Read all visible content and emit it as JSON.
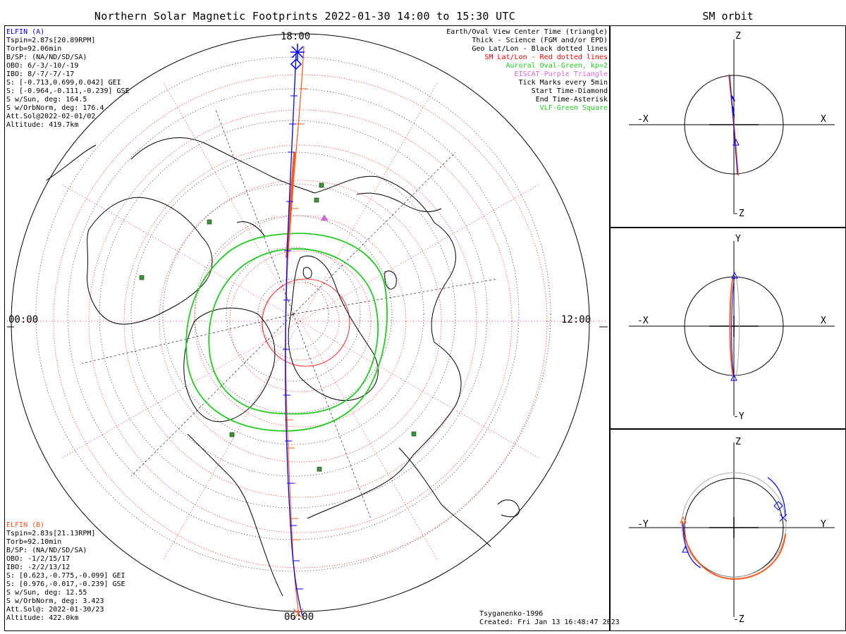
{
  "header": {
    "title": "Northern Solar Magnetic Footprints 2022-01-30 14:00 to 15:30 UTC",
    "orbit_title": "SM orbit"
  },
  "map": {
    "time_labels": {
      "top": "18:00",
      "left": "00:00",
      "right": "12:00",
      "bottom": "06:00"
    },
    "colors": {
      "elfin_a": "#0000ff",
      "elfin_b": "#ff5a1e",
      "oval": "#22cc22",
      "sm_grid": "#ff0000",
      "geo_grid": "#000000"
    }
  },
  "elfin_a": {
    "name": "ELFIN (A)",
    "lines": [
      "Tspin=2.87s[20.89RPM]",
      "Torb=92.06min",
      "B/SP: (NA/ND/SD/SA)",
      "OBO: 6/-3/-10/-19",
      "IBO: 8/-7/-7/-17",
      "S: [-0.713,0.699,0.042] GEI",
      "S: [-0.964,-0.111,-0.239] GSE",
      "S w/Sun, deg: 164.5",
      "S w/OrbNorm, deg: 176.4",
      "Att.Sol@2022-02-01/02",
      "Altitude: 419.7km"
    ]
  },
  "elfin_b": {
    "name": "ELFIN (B)",
    "lines": [
      "Tspin=2.83s[21.13RPM]",
      "Torb=92.10min",
      "B/SP: (NA/ND/SD/SA)",
      "OBO: -1/2/15/17",
      "IBO: -2/2/13/12",
      "S: [0.623,-0.775,-0.099] GEI",
      "S: [0.976,-0.017,-0.239] GSE",
      "S w/Sun, deg: 12.55",
      "S w/OrbNorm, deg: 3.423",
      "Att.Sol@: 2022-01-30/23",
      "Altitude: 422.0km"
    ]
  },
  "legend": [
    {
      "text": "Earth/Oval View Center Time (triangle)",
      "color": "#000000"
    },
    {
      "text": "Thick - Science (FGM and/or EPD)",
      "color": "#000000"
    },
    {
      "text": "Geo Lat/Lon - Black dotted lines",
      "color": "#000000"
    },
    {
      "text": "SM Lat/Lon - Red dotted lines",
      "color": "#ff0000"
    },
    {
      "text": "Auroral Oval-Green, kp=2",
      "color": "#22cc22"
    },
    {
      "text": "EISCAT-Purple Triangle",
      "color": "#dd66dd"
    },
    {
      "text": "Tick Marks every 5min",
      "color": "#000000"
    },
    {
      "text": "Start Time-Diamond",
      "color": "#000000"
    },
    {
      "text": "End Time-Asterisk",
      "color": "#000000"
    },
    {
      "text": "VLF-Green Square",
      "color": "#22cc22"
    }
  ],
  "footer": {
    "model": "Tsyganenko-1996",
    "created": "Created: Fri Jan 13 16:48:47 2023"
  },
  "orbit_panels": [
    {
      "top": "Z",
      "bottom": "-Z",
      "left": "-X",
      "right": "X"
    },
    {
      "top": "Y",
      "bottom": "-Y",
      "left": "-X",
      "right": "X"
    },
    {
      "top": "Z",
      "bottom": "-Z",
      "left": "-Y",
      "right": "Y"
    }
  ]
}
